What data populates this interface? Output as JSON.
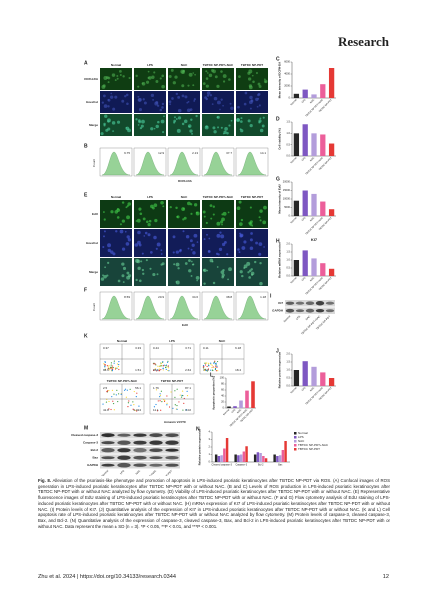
{
  "header": {
    "journal": "Research"
  },
  "figure": {
    "columns": [
      "Normal",
      "LPS",
      "NAC",
      "TBTDC NP-PDT+NAC",
      "TBTDC NP-PDT"
    ],
    "colors": [
      "#262626",
      "#7e57c2",
      "#b39ddb",
      "#ec5f9a",
      "#e53935"
    ],
    "image_panels": [
      {
        "letter": "A",
        "rows": [
          "DCFH-DA",
          "Hoechst",
          "Merge"
        ],
        "tints": [
          "#0f3d12",
          "#101a55",
          "#124a2c"
        ],
        "dots": [
          "#4caf50",
          "#3f51b5",
          "#4dd0a0"
        ]
      },
      {
        "letter": "E",
        "rows": [
          "EdU",
          "Hoechst",
          "Merge"
        ],
        "tints": [
          "#0d3a14",
          "#121c58",
          "#18443a"
        ],
        "dots": [
          "#43d24b",
          "#4a5ee0",
          "#6ad49a"
        ]
      }
    ],
    "histograms": [
      {
        "letter": "B",
        "y_label": "Count",
        "x_label": "DCFH-DA",
        "values": [
          9.75,
          12.9,
          2.13,
          37.7,
          14.1
        ]
      },
      {
        "letter": "F",
        "y_label": "Count",
        "x_label": "EdU",
        "values": [
          8.59,
          20.9,
          34.6,
          38.8,
          1.18
        ]
      }
    ],
    "flow": {
      "letter": "K",
      "x_label": "Annexin V-FITC",
      "plots": [
        {
          "name": "Normal",
          "quadrants": [
            0.37,
            3.33,
            94.6,
            1.51
          ]
        },
        {
          "name": "LPS",
          "quadrants": [
            0.44,
            3.71,
            95.1,
            2.64
          ]
        },
        {
          "name": "NAC",
          "quadrants": [
            0.11,
            6.18,
            75.8,
            18.4
          ]
        },
        {
          "name": "TBTDC NP-PDT+NAC",
          "quadrants": [
            2.5,
            56.1,
            41.8,
            0.024
          ]
        },
        {
          "name": "TBTDC NP-PDT",
          "quadrants": [
            1.76,
            87.1,
            11.1,
            0.02
          ]
        }
      ]
    },
    "blots": [
      {
        "letter": "I",
        "rows": [
          "KI7",
          "GAPDH"
        ]
      },
      {
        "letter": "M",
        "rows": [
          "Cleaved caspase-3",
          "Caspase-3",
          "Bcl-2",
          "Bax",
          "GAPDH"
        ]
      }
    ],
    "charts": [
      {
        "letter": "C",
        "type": "bar",
        "y_label": "Mean intensity of DCFH-DA",
        "ylim": [
          0,
          6000
        ],
        "yticks": [
          0,
          2000,
          4000,
          6000
        ],
        "values": [
          700,
          1400,
          600,
          2300,
          5000
        ]
      },
      {
        "letter": "D",
        "type": "bar",
        "y_label": "Cell viability (%)",
        "ylim": [
          0,
          1.5
        ],
        "yticks": [
          {
            "value": 0,
            "label": "0.0"
          },
          0.5,
          {
            "value": 1,
            "label": "1.0"
          },
          1.5
        ],
        "values": [
          1.0,
          1.4,
          1.0,
          0.95,
          0.55
        ]
      },
      {
        "letter": "G",
        "type": "bar",
        "y_label": "Mean intensity of EdU",
        "ylim": [
          0,
          20000
        ],
        "yticks": [
          0,
          5000,
          10000,
          15000,
          20000
        ],
        "values": [
          9000,
          15000,
          13000,
          8500,
          4000
        ]
      },
      {
        "letter": "H",
        "type": "bar",
        "title": "KI7",
        "y_label": "Relative mRNA expression",
        "ylim": [
          0,
          2
        ],
        "yticks": [
          {
            "value": 0,
            "label": "0.0"
          },
          0.5,
          {
            "value": 1,
            "label": "1.0"
          },
          1.5,
          {
            "value": 2,
            "label": "2.0"
          }
        ],
        "values": [
          1.0,
          1.6,
          1.1,
          0.8,
          0.45
        ]
      },
      {
        "letter": "J",
        "type": "bar",
        "y_label": "Relative protein expression",
        "ylim": [
          0,
          2
        ],
        "yticks": [
          {
            "value": 0,
            "label": "0.0"
          },
          0.5,
          {
            "value": 1,
            "label": "1.0"
          },
          1.5,
          {
            "value": 2,
            "label": "2.0"
          }
        ],
        "values": [
          1.0,
          1.55,
          1.2,
          0.85,
          0.5
        ]
      },
      {
        "letter": "L",
        "type": "bar",
        "y_label": "Apoptosis proportion (%)",
        "ylim": [
          0,
          100
        ],
        "yticks": [
          0,
          20,
          40,
          60,
          80,
          100
        ],
        "values": [
          5,
          6,
          25,
          58,
          89
        ]
      },
      {
        "letter": "N",
        "type": "grouped",
        "y_label": "Relative protein expression",
        "ylim": [
          0,
          4
        ],
        "yticks": [
          0,
          1,
          2,
          3,
          4
        ],
        "categories": [
          "Cleaved caspase-3",
          "Caspase-3",
          "Bcl-2",
          "Bax"
        ],
        "series": [
          {
            "name": "Normal",
            "color": "#262626",
            "values": [
              1.0,
              1.0,
              1.0,
              1.0
            ]
          },
          {
            "name": "LPS",
            "color": "#7e57c2",
            "values": [
              0.8,
              0.9,
              1.3,
              0.8
            ]
          },
          {
            "name": "NAC",
            "color": "#b39ddb",
            "values": [
              0.9,
              1.0,
              1.2,
              0.9
            ]
          },
          {
            "name": "TBTDC NP-PDT+NAC",
            "color": "#ec5f9a",
            "values": [
              1.8,
              1.4,
              0.8,
              1.6
            ]
          },
          {
            "name": "TBTDC NP-PDT",
            "color": "#e53935",
            "values": [
              3.2,
              2.1,
              0.5,
              2.8
            ]
          }
        ]
      }
    ]
  },
  "caption": {
    "label": "Fig. 8.",
    "text": "Alleviation of the psoriasis-like phenotype and promotion of apoptosis in LPS-induced psoriatic keratinocytes after TBTDC NP-PDT via ROS. (A) Confocal images of ROS generation in LPS-induced psoriatic keratinocytes after TBTDC NP-PDT with or without NAC. (B and C) Levels of ROS production in LPS-induced psoriatic keratinocytes after TBTDC NP-PDT with or without NAC analyzed by flow cytometry. (D) Viability of LPS-induced psoriatic keratinocytes after TBTDC NP-PDT with or without NAC. (E) Representative fluorescence images of EdU staining of LPS-induced psoriatic keratinocytes after TBTDC NP-PDT with or without NAC. (F and G) Flow cytometry analysis of EdU staining of LPS-induced psoriatic keratinocytes after TBTDC NP-PDT with or without NAC. (H) mRNA expression of KI7 of LPS-induced psoriatic keratinocytes after TBTDC NP-PDT with or without NAC. (I) Protein levels of KI7. (J) Quantitative analysis of the expression of KI7 in LPS-induced psoriatic keratinocytes after TBTDC NP-PDT with or without NAC. (K and L) Cell apoptosis rate of LPS-induced psoriatic keratinocytes after TBTDC NP-PDT with or without NAC analyzed by flow cytometry. (M) Protein levels of caspase-3, cleaved caspase-3, Bax, and Bcl-2. (N) Quantitative analysis of the expression of caspase-3, cleaved caspase-3, Bax, and Bcl-2 in LPS-induced psoriatic keratinocytes after TBTDC NP-PDT with or without NAC. Data represent the mean ± SD (n = 3). *P < 0.05, **P < 0.01, and ***P < 0.001."
  },
  "footer": {
    "citation": "Zhu et al. 2024 | https://doi.org/10.34133/research.0344",
    "page": "12"
  }
}
